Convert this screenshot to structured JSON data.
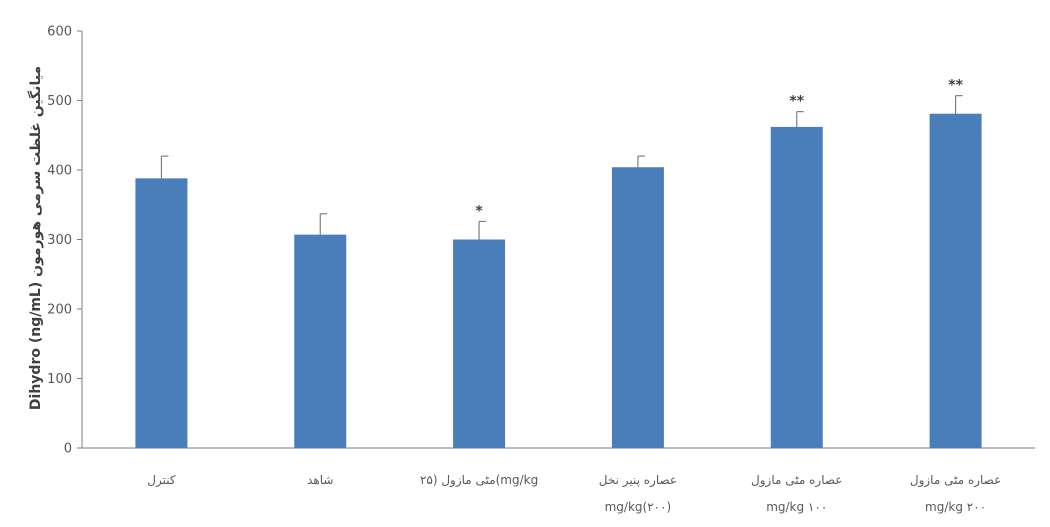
{
  "chart_data": {
    "type": "bar",
    "categories": [
      [
        "کنترل"
      ],
      [
        "شاهد"
      ],
      [
        "مٹی مازول (۲۵(mg/kg"
      ],
      [
        "عصاره پنیر نخل",
        "mg/kg(۲۰۰)"
      ],
      [
        "عصاره مٹی مازول",
        "mg/kg ۱۰۰"
      ],
      [
        "عصاره مٹی مازول",
        "mg/kg ۲۰۰"
      ]
    ],
    "values": [
      388,
      307,
      300,
      404,
      462,
      481
    ],
    "errors": [
      32,
      30,
      26,
      16,
      22,
      26
    ],
    "significance": [
      "",
      "",
      "*",
      "",
      "**",
      "**"
    ],
    "ylabel": "Dihydro (ng/mL) میانگین غلظت سرمی هورمون",
    "ylim": [
      0,
      600
    ],
    "yticks": [
      0,
      100,
      200,
      300,
      400,
      500,
      600
    ],
    "grid": false,
    "bar_color": "#4a7ebb",
    "axis_color": "#7f7f7f"
  }
}
